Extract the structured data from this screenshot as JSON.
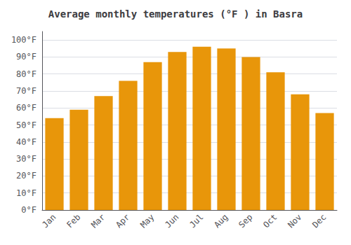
{
  "chart_data": {
    "type": "bar",
    "title": "Average monthly temperatures (°F ) in Basra",
    "categories": [
      "Jan",
      "Feb",
      "Mar",
      "Apr",
      "May",
      "Jun",
      "Jul",
      "Aug",
      "Sep",
      "Oct",
      "Nov",
      "Dec"
    ],
    "values": [
      54,
      59,
      67,
      76,
      87,
      93,
      96,
      95,
      90,
      81,
      68,
      57
    ],
    "color": "#E8960A",
    "ylim": [
      0,
      105
    ],
    "yticks": [
      {
        "value": 0,
        "label": "0°F"
      },
      {
        "value": 10,
        "label": "10°F"
      },
      {
        "value": 20,
        "label": "20°F"
      },
      {
        "value": 30,
        "label": "30°F"
      },
      {
        "value": 40,
        "label": "40°F"
      },
      {
        "value": 50,
        "label": "50°F"
      },
      {
        "value": 60,
        "label": "60°F"
      },
      {
        "value": 70,
        "label": "70°F"
      },
      {
        "value": 80,
        "label": "80°F"
      },
      {
        "value": 90,
        "label": "90°F"
      },
      {
        "value": 100,
        "label": "100°F"
      }
    ],
    "grid": true
  }
}
